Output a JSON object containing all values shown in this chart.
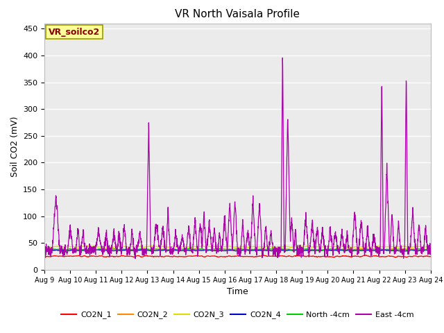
{
  "title": "VR North Vaisala Profile",
  "xlabel": "Time",
  "ylabel": "Soil CO2 (mV)",
  "ylim": [
    0,
    460
  ],
  "xlim": [
    0,
    15
  ],
  "x_tick_labels": [
    "Aug 9",
    "Aug 10",
    "Aug 11",
    "Aug 12",
    "Aug 13",
    "Aug 14",
    "Aug 15",
    "Aug 16",
    "Aug 17",
    "Aug 18",
    "Aug 19",
    "Aug 20",
    "Aug 21",
    "Aug 22",
    "Aug 23",
    "Aug 24"
  ],
  "annotation_text": "VR_soilco2",
  "legend_entries": [
    "CO2N_1",
    "CO2N_2",
    "CO2N_3",
    "CO2N_4",
    "North -4cm",
    "East -4cm"
  ],
  "colors": {
    "CO2N_1": "#FF0000",
    "CO2N_2": "#FF8800",
    "CO2N_3": "#DDDD00",
    "CO2N_4": "#0000CC",
    "North_4cm": "#00CC00",
    "East_4cm": "#AA00AA"
  },
  "background_color": "#EBEBEB",
  "title_fontsize": 11,
  "yticks": [
    0,
    50,
    100,
    150,
    200,
    250,
    300,
    350,
    400,
    450
  ]
}
